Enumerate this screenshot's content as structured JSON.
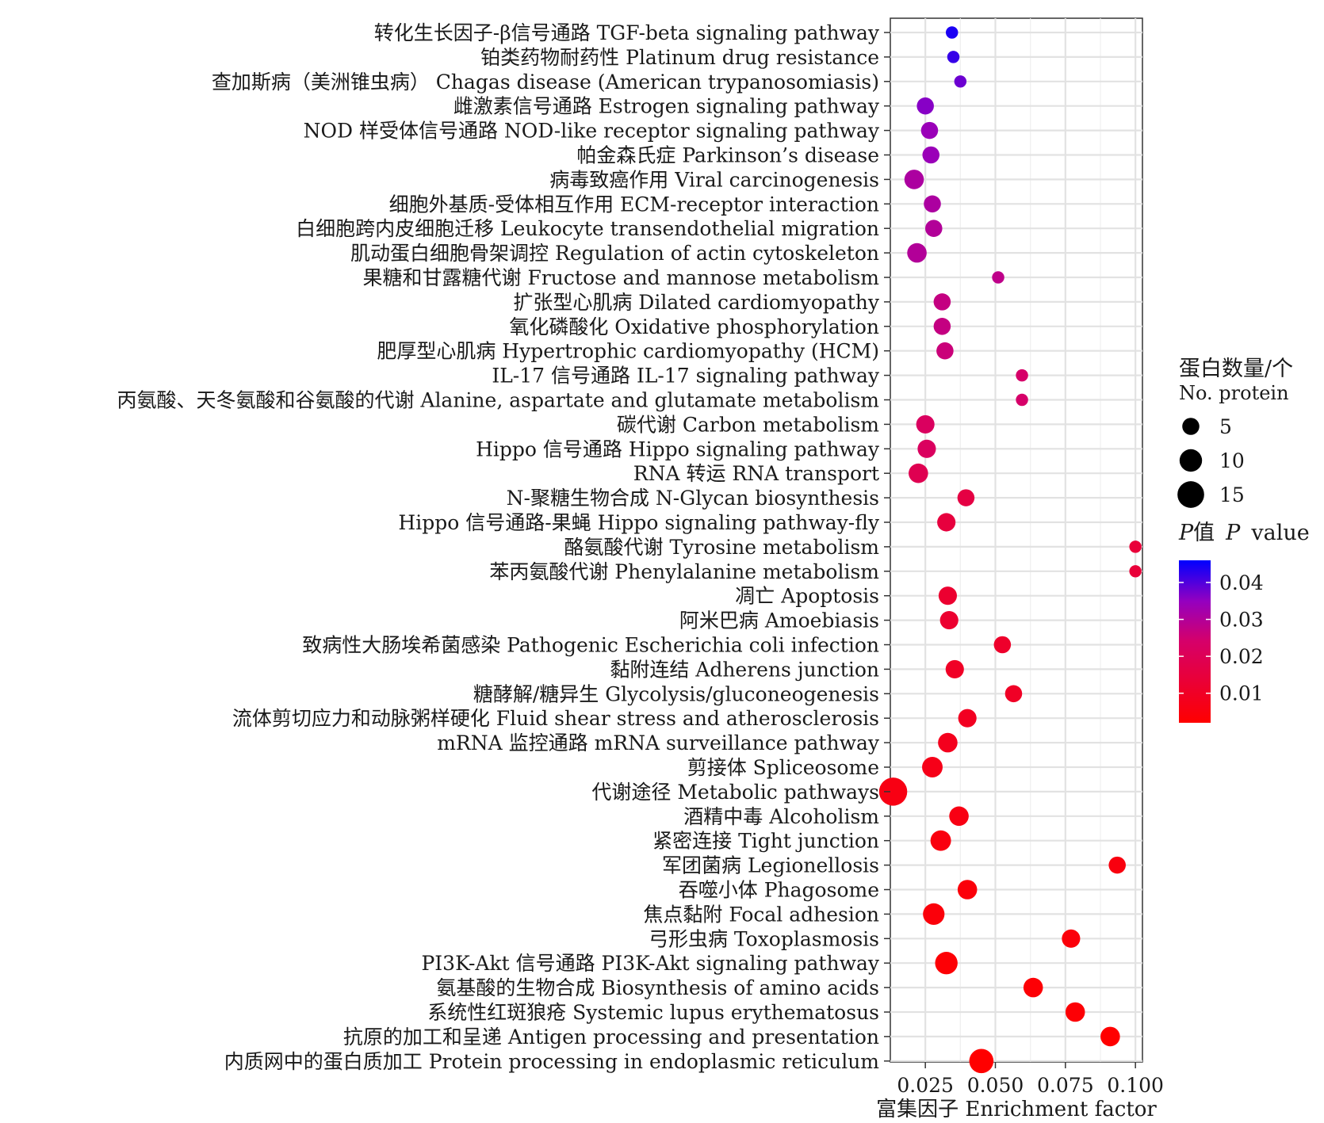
{
  "chart_data": {
    "type": "scatter",
    "xlabel": "富集因子 Enrichment factor",
    "ylabel": "",
    "xlim": [
      0.0125,
      0.1025
    ],
    "x_ticks": [
      0.025,
      0.05,
      0.075,
      0.1
    ],
    "x_tick_labels": [
      "0.025",
      "0.050",
      "0.075",
      "0.100"
    ],
    "grid": true,
    "size_legend": {
      "title_zh": "蛋白数量/个",
      "title_en": "No. protein",
      "entries": [
        5,
        10,
        15
      ],
      "entry_labels": [
        "5",
        "10",
        "15"
      ]
    },
    "color_legend": {
      "title_prefix": "P",
      "title_zh": "值",
      "title_italic": "P",
      "title_suffix": "value",
      "range": [
        0.002,
        0.046
      ],
      "ticks": [
        0.04,
        0.03,
        0.02,
        0.01
      ],
      "tick_labels": [
        "0.04",
        "0.03",
        "0.02",
        "0.01"
      ],
      "colors": {
        "low": "#ff0000",
        "high": "#0000ff"
      }
    },
    "points": [
      {
        "label": "转化生长因子-β信号通路 TGF-beta signaling pathway",
        "x": 0.0345,
        "count": 2,
        "p": 0.044
      },
      {
        "label": "铂类药物耐药性 Platinum drug resistance",
        "x": 0.035,
        "count": 2,
        "p": 0.042
      },
      {
        "label": "查加斯病（美洲锥虫病） Chagas disease (American trypanosomiasis)",
        "x": 0.0375,
        "count": 2,
        "p": 0.038
      },
      {
        "label": "雌激素信号通路 Estrogen signaling pathway",
        "x": 0.025,
        "count": 5,
        "p": 0.036
      },
      {
        "label": "NOD 样受体信号通路 NOD-like receptor signaling pathway",
        "x": 0.0265,
        "count": 5,
        "p": 0.034
      },
      {
        "label": "帕金森氏症 Parkinson’s disease",
        "x": 0.027,
        "count": 5,
        "p": 0.034
      },
      {
        "label": "病毒致癌作用 Viral carcinogenesis",
        "x": 0.021,
        "count": 7,
        "p": 0.031
      },
      {
        "label": "细胞外基质-受体相互作用 ECM-receptor interaction",
        "x": 0.0275,
        "count": 5,
        "p": 0.031
      },
      {
        "label": "白细胞跨内皮细胞迁移 Leukocyte transendothelial migration",
        "x": 0.028,
        "count": 5,
        "p": 0.03
      },
      {
        "label": "肌动蛋白细胞骨架调控 Regulation of actin cytoskeleton",
        "x": 0.022,
        "count": 7,
        "p": 0.03
      },
      {
        "label": "果糖和甘露糖代谢 Fructose and mannose metabolism",
        "x": 0.051,
        "count": 2,
        "p": 0.028
      },
      {
        "label": "扩张型心肌病 Dilated cardiomyopathy",
        "x": 0.031,
        "count": 5,
        "p": 0.027
      },
      {
        "label": "氧化磷酸化 Oxidative phosphorylation",
        "x": 0.031,
        "count": 5,
        "p": 0.027
      },
      {
        "label": "肥厚型心肌病 Hypertrophic cardiomyopathy (HCM)",
        "x": 0.032,
        "count": 5,
        "p": 0.026
      },
      {
        "label": "IL-17 信号通路 IL-17 signaling pathway",
        "x": 0.0595,
        "count": 2,
        "p": 0.024
      },
      {
        "label": "丙氨酸、天冬氨酸和谷氨酸的代谢 Alanine, aspartate and glutamate metabolism",
        "x": 0.0595,
        "count": 2,
        "p": 0.024
      },
      {
        "label": "碳代谢 Carbon metabolism",
        "x": 0.025,
        "count": 6,
        "p": 0.022
      },
      {
        "label": "Hippo 信号通路 Hippo signaling pathway",
        "x": 0.0255,
        "count": 6,
        "p": 0.022
      },
      {
        "label": "RNA 转运 RNA transport",
        "x": 0.0225,
        "count": 7,
        "p": 0.019
      },
      {
        "label": "N-聚糖生物合成 N-Glycan biosynthesis",
        "x": 0.0395,
        "count": 5,
        "p": 0.016
      },
      {
        "label": "Hippo 信号通路-果蝇 Hippo signaling pathway-fly",
        "x": 0.0325,
        "count": 6,
        "p": 0.015
      },
      {
        "label": "酪氨酸代谢 Tyrosine metabolism",
        "x": 0.1,
        "count": 2,
        "p": 0.014
      },
      {
        "label": "苯丙氨酸代谢 Phenylalanine metabolism",
        "x": 0.1,
        "count": 2,
        "p": 0.014
      },
      {
        "label": "凋亡 Apoptosis",
        "x": 0.033,
        "count": 6,
        "p": 0.012
      },
      {
        "label": "阿米巴病 Amoebiasis",
        "x": 0.0335,
        "count": 6,
        "p": 0.012
      },
      {
        "label": "致病性大肠埃希菌感染 Pathogenic Escherichia coli infection",
        "x": 0.0525,
        "count": 5,
        "p": 0.011
      },
      {
        "label": "黏附连结 Adherens junction",
        "x": 0.0355,
        "count": 6,
        "p": 0.01
      },
      {
        "label": "糖酵解/糖异生 Glycolysis/gluconeogenesis",
        "x": 0.0565,
        "count": 5,
        "p": 0.01
      },
      {
        "label": "流体剪切应力和动脉粥样硬化 Fluid shear stress and atherosclerosis",
        "x": 0.04,
        "count": 6,
        "p": 0.009
      },
      {
        "label": "mRNA 监控通路 mRNA surveillance pathway",
        "x": 0.033,
        "count": 7,
        "p": 0.008
      },
      {
        "label": "剪接体 Spliceosome",
        "x": 0.0275,
        "count": 8,
        "p": 0.007
      },
      {
        "label": "代谢途径 Metabolic pathways",
        "x": 0.0135,
        "count": 17,
        "p": 0.006
      },
      {
        "label": "酒精中毒 Alcoholism",
        "x": 0.037,
        "count": 7,
        "p": 0.006
      },
      {
        "label": "紧密连接 Tight junction",
        "x": 0.0305,
        "count": 8,
        "p": 0.005
      },
      {
        "label": "军团菌病 Legionellosis",
        "x": 0.0935,
        "count": 5,
        "p": 0.005
      },
      {
        "label": "吞噬小体 Phagosome",
        "x": 0.04,
        "count": 7,
        "p": 0.004
      },
      {
        "label": "焦点黏附 Focal adhesion",
        "x": 0.028,
        "count": 9,
        "p": 0.004
      },
      {
        "label": "弓形虫病 Toxoplasmosis",
        "x": 0.077,
        "count": 6,
        "p": 0.004
      },
      {
        "label": "PI3K-Akt 信号通路 PI3K-Akt signaling pathway",
        "x": 0.0325,
        "count": 10,
        "p": 0.003
      },
      {
        "label": "氨基酸的生物合成 Biosynthesis of amino acids",
        "x": 0.0635,
        "count": 7,
        "p": 0.003
      },
      {
        "label": "系统性红斑狼疮 Systemic lupus erythematosus",
        "x": 0.0785,
        "count": 7,
        "p": 0.003
      },
      {
        "label": "抗原的加工和呈递 Antigen processing and presentation",
        "x": 0.091,
        "count": 7,
        "p": 0.002
      },
      {
        "label": "内质网中的蛋白质加工 Protein processing in endoplasmic reticulum",
        "x": 0.045,
        "count": 12,
        "p": 0.002
      }
    ]
  }
}
